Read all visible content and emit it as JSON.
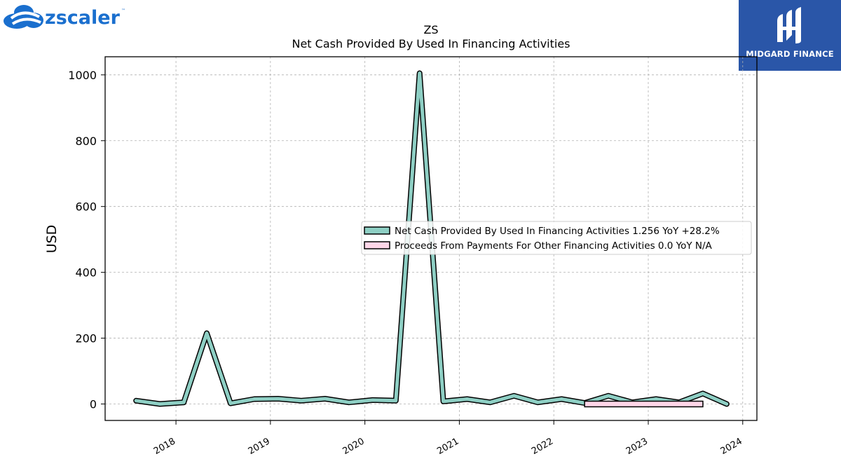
{
  "logos": {
    "left_text": "zscaler",
    "left_tm": "™",
    "right_text": "MIDGARD FINANCE"
  },
  "colors": {
    "series1": "#8ecfc4",
    "series2": "#ffd6e8",
    "outline": "#000000",
    "grid": "#b0b0b0",
    "zscaler_blue": "#1a6fce",
    "midgard_blue": "#2a56a8"
  },
  "chart_data": {
    "type": "line",
    "title": "ZS",
    "subtitle": "Net Cash Provided By Used In Financing Activities",
    "ylabel": "USD",
    "xlabel": "",
    "ylim": [
      -50,
      1055
    ],
    "xlim": [
      2017.25,
      2024.15
    ],
    "yticks": [
      0,
      200,
      400,
      600,
      800,
      1000
    ],
    "xticks": [
      "2018",
      "2019",
      "2020",
      "2021",
      "2022",
      "2023",
      "2024"
    ],
    "grid": true,
    "legend_position": "center-right",
    "series": [
      {
        "name": "Net Cash Provided By Used In Financing Activities  1.256 YoY +28.2%",
        "x": [
          "2017-07-31",
          "2017-10-31",
          "2018-01-31",
          "2018-04-30",
          "2018-07-31",
          "2018-10-31",
          "2019-01-31",
          "2019-04-30",
          "2019-07-31",
          "2019-10-31",
          "2020-01-31",
          "2020-04-30",
          "2020-07-31",
          "2020-10-31",
          "2021-01-31",
          "2021-04-30",
          "2021-07-31",
          "2021-10-31",
          "2022-01-31",
          "2022-04-30",
          "2022-07-31",
          "2022-10-31",
          "2023-01-31",
          "2023-04-30",
          "2023-07-31",
          "2023-10-31"
        ],
        "values": [
          10,
          0,
          5,
          215,
          2,
          15,
          16,
          10,
          16,
          5,
          12,
          10,
          1005,
          8,
          15,
          5,
          25,
          5,
          15,
          3,
          25,
          5,
          15,
          5,
          32,
          0
        ]
      },
      {
        "name": "Proceeds From Payments For Other Financing Activities  0.0 YoY N/A",
        "x": [
          "2022-04-30",
          "2023-07-31"
        ],
        "values": [
          0.0,
          0.0
        ]
      }
    ]
  }
}
